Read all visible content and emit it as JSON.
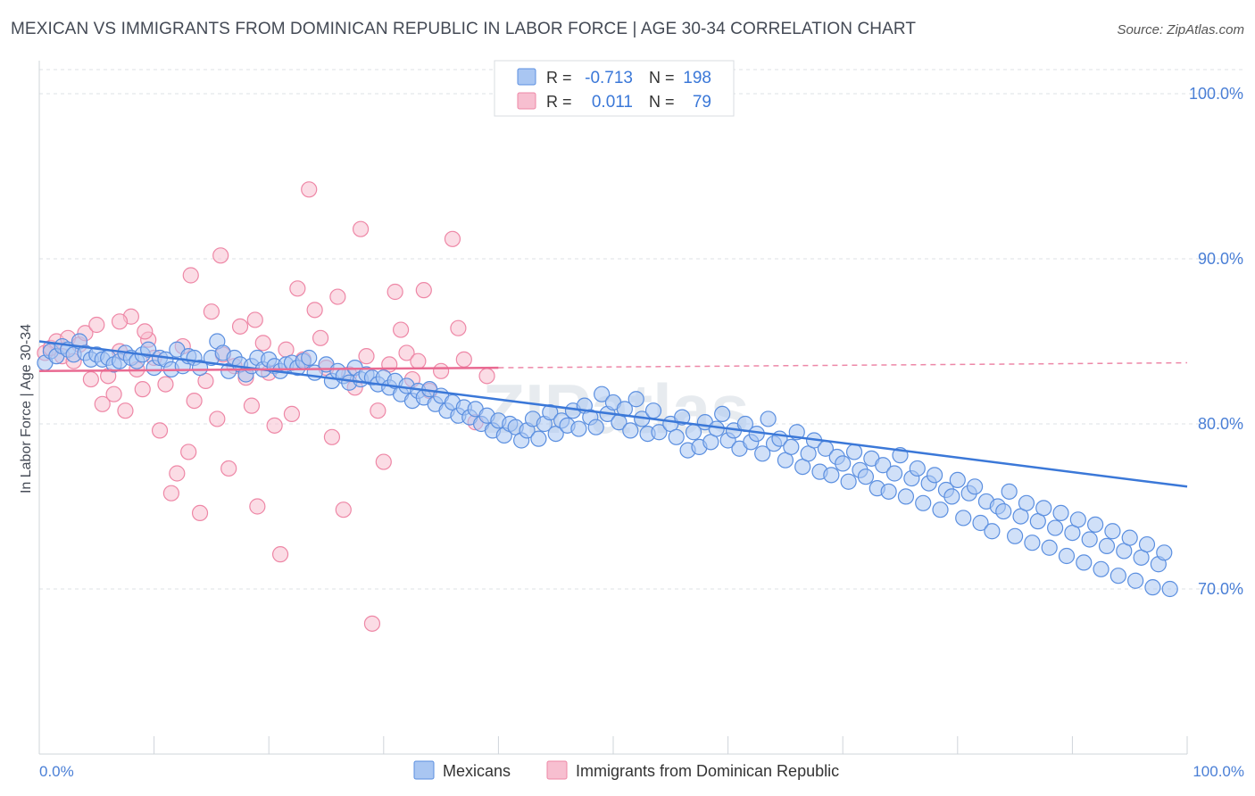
{
  "header": {
    "title": "MEXICAN VS IMMIGRANTS FROM DOMINICAN REPUBLIC IN LABOR FORCE | AGE 30-34 CORRELATION CHART",
    "source": "Source: ZipAtlas.com"
  },
  "watermark": "ZIPatlas",
  "colors": {
    "blue": "#5b8fe0",
    "blue_fill": "#a9c6f2",
    "blue_line": "#3b78d8",
    "pink": "#ee87a6",
    "pink_fill": "#f7bfd0",
    "pink_line": "#e96a92",
    "tick_label": "#4a7fd6",
    "grid": "#dde1e6"
  },
  "legend_top": {
    "rows": [
      {
        "r_label": "R =",
        "r_value": "-0.713",
        "n_label": "N =",
        "n_value": "198"
      },
      {
        "r_label": "R =",
        "r_value": "0.011",
        "n_label": "N =",
        "n_value": "79"
      }
    ]
  },
  "chart_data": {
    "type": "scatter",
    "title": "MEXICAN VS IMMIGRANTS FROM DOMINICAN REPUBLIC IN LABOR FORCE | AGE 30-34 CORRELATION CHART",
    "xlabel": "",
    "ylabel": "In Labor Force | Age 30-34",
    "xlim": [
      0,
      100
    ],
    "ylim": [
      60,
      102
    ],
    "x_tick_labels": [
      "0.0%",
      "100.0%"
    ],
    "y_ticks": [
      70,
      80,
      90,
      100
    ],
    "y_tick_labels": [
      "70.0%",
      "80.0%",
      "90.0%",
      "100.0%"
    ],
    "grid": true,
    "legend_position": "bottom",
    "series": [
      {
        "name": "Mexicans",
        "color": "#5b8fe0",
        "trend": {
          "x0": 0,
          "y0": 85.0,
          "x1": 100,
          "y1": 76.2
        },
        "points": [
          [
            0.5,
            83.7
          ],
          [
            1.0,
            84.4
          ],
          [
            1.5,
            84.1
          ],
          [
            2.0,
            84.7
          ],
          [
            2.5,
            84.5
          ],
          [
            3.0,
            84.2
          ],
          [
            3.5,
            85.0
          ],
          [
            4.0,
            84.3
          ],
          [
            4.5,
            83.9
          ],
          [
            5.0,
            84.2
          ],
          [
            5.5,
            83.9
          ],
          [
            6.0,
            84.0
          ],
          [
            6.5,
            83.6
          ],
          [
            7.0,
            83.8
          ],
          [
            7.5,
            84.3
          ],
          [
            8.0,
            84.0
          ],
          [
            8.5,
            83.8
          ],
          [
            9.0,
            84.2
          ],
          [
            9.5,
            84.5
          ],
          [
            10.0,
            83.4
          ],
          [
            10.5,
            84.0
          ],
          [
            11.0,
            83.9
          ],
          [
            11.5,
            83.3
          ],
          [
            12.0,
            84.5
          ],
          [
            12.5,
            83.5
          ],
          [
            13.0,
            84.1
          ],
          [
            13.5,
            84.0
          ],
          [
            14.0,
            83.4
          ],
          [
            15.0,
            84.0
          ],
          [
            15.5,
            85.0
          ],
          [
            16.0,
            84.3
          ],
          [
            16.5,
            83.2
          ],
          [
            17.0,
            84.0
          ],
          [
            17.5,
            83.6
          ],
          [
            18.0,
            83.0
          ],
          [
            18.5,
            83.5
          ],
          [
            19.0,
            84.0
          ],
          [
            19.5,
            83.3
          ],
          [
            20.0,
            83.9
          ],
          [
            20.5,
            83.5
          ],
          [
            21.0,
            83.2
          ],
          [
            21.5,
            83.6
          ],
          [
            22.0,
            83.7
          ],
          [
            22.5,
            83.4
          ],
          [
            23.0,
            83.8
          ],
          [
            23.5,
            84.0
          ],
          [
            24.0,
            83.1
          ],
          [
            25.0,
            83.6
          ],
          [
            25.5,
            82.6
          ],
          [
            26.0,
            83.2
          ],
          [
            26.5,
            82.9
          ],
          [
            27.0,
            82.5
          ],
          [
            27.5,
            83.4
          ],
          [
            28.0,
            82.7
          ],
          [
            28.5,
            83.0
          ],
          [
            29.0,
            82.8
          ],
          [
            29.5,
            82.4
          ],
          [
            30.0,
            82.8
          ],
          [
            30.5,
            82.2
          ],
          [
            31.0,
            82.6
          ],
          [
            31.5,
            81.8
          ],
          [
            32.0,
            82.3
          ],
          [
            32.5,
            81.4
          ],
          [
            33.0,
            82.0
          ],
          [
            33.5,
            81.6
          ],
          [
            34.0,
            82.1
          ],
          [
            34.5,
            81.2
          ],
          [
            35.0,
            81.7
          ],
          [
            35.5,
            80.8
          ],
          [
            36.0,
            81.3
          ],
          [
            36.5,
            80.5
          ],
          [
            37.0,
            81.0
          ],
          [
            37.5,
            80.4
          ],
          [
            38.0,
            80.9
          ],
          [
            38.5,
            80.0
          ],
          [
            39.0,
            80.5
          ],
          [
            39.5,
            79.6
          ],
          [
            40.0,
            80.2
          ],
          [
            40.5,
            79.3
          ],
          [
            41.0,
            80.0
          ],
          [
            41.5,
            79.8
          ],
          [
            42.0,
            79.0
          ],
          [
            42.5,
            79.6
          ],
          [
            43.0,
            80.3
          ],
          [
            43.5,
            79.1
          ],
          [
            44.0,
            80.0
          ],
          [
            44.5,
            80.7
          ],
          [
            45.0,
            79.4
          ],
          [
            45.5,
            80.2
          ],
          [
            46.0,
            79.9
          ],
          [
            46.5,
            80.8
          ],
          [
            47.0,
            79.7
          ],
          [
            47.5,
            81.1
          ],
          [
            48.0,
            80.4
          ],
          [
            48.5,
            79.8
          ],
          [
            49.0,
            81.8
          ],
          [
            49.5,
            80.6
          ],
          [
            50.0,
            81.3
          ],
          [
            50.5,
            80.1
          ],
          [
            51.0,
            80.9
          ],
          [
            51.5,
            79.6
          ],
          [
            52.0,
            81.5
          ],
          [
            52.5,
            80.3
          ],
          [
            53.0,
            79.4
          ],
          [
            53.5,
            80.8
          ],
          [
            54.0,
            79.5
          ],
          [
            55.0,
            80.0
          ],
          [
            55.5,
            79.2
          ],
          [
            56.0,
            80.4
          ],
          [
            56.5,
            78.4
          ],
          [
            57.0,
            79.5
          ],
          [
            57.5,
            78.6
          ],
          [
            58.0,
            80.1
          ],
          [
            58.5,
            78.9
          ],
          [
            59.0,
            79.7
          ],
          [
            59.5,
            80.6
          ],
          [
            60.0,
            79.0
          ],
          [
            60.5,
            79.6
          ],
          [
            61.0,
            78.5
          ],
          [
            61.5,
            80.0
          ],
          [
            62.0,
            78.9
          ],
          [
            62.5,
            79.4
          ],
          [
            63.0,
            78.2
          ],
          [
            63.5,
            80.3
          ],
          [
            64.0,
            78.8
          ],
          [
            64.5,
            79.1
          ],
          [
            65.0,
            77.8
          ],
          [
            65.5,
            78.6
          ],
          [
            66.0,
            79.5
          ],
          [
            66.5,
            77.4
          ],
          [
            67.0,
            78.2
          ],
          [
            67.5,
            79.0
          ],
          [
            68.0,
            77.1
          ],
          [
            68.5,
            78.5
          ],
          [
            69.0,
            76.9
          ],
          [
            69.5,
            78.0
          ],
          [
            70.0,
            77.6
          ],
          [
            70.5,
            76.5
          ],
          [
            71.0,
            78.3
          ],
          [
            71.5,
            77.2
          ],
          [
            72.0,
            76.8
          ],
          [
            72.5,
            77.9
          ],
          [
            73.0,
            76.1
          ],
          [
            73.5,
            77.5
          ],
          [
            74.0,
            75.9
          ],
          [
            74.5,
            77.0
          ],
          [
            75.0,
            78.1
          ],
          [
            75.5,
            75.6
          ],
          [
            76.0,
            76.7
          ],
          [
            76.5,
            77.3
          ],
          [
            77.0,
            75.2
          ],
          [
            77.5,
            76.4
          ],
          [
            78.0,
            76.9
          ],
          [
            78.5,
            74.8
          ],
          [
            79.0,
            76.0
          ],
          [
            79.5,
            75.6
          ],
          [
            80.0,
            76.6
          ],
          [
            80.5,
            74.3
          ],
          [
            81.0,
            75.8
          ],
          [
            81.5,
            76.2
          ],
          [
            82.0,
            74.0
          ],
          [
            82.5,
            75.3
          ],
          [
            83.0,
            73.5
          ],
          [
            83.5,
            75.0
          ],
          [
            84.0,
            74.7
          ],
          [
            84.5,
            75.9
          ],
          [
            85.0,
            73.2
          ],
          [
            85.5,
            74.4
          ],
          [
            86.0,
            75.2
          ],
          [
            86.5,
            72.8
          ],
          [
            87.0,
            74.1
          ],
          [
            87.5,
            74.9
          ],
          [
            88.0,
            72.5
          ],
          [
            88.5,
            73.7
          ],
          [
            89.0,
            74.6
          ],
          [
            89.5,
            72.0
          ],
          [
            90.0,
            73.4
          ],
          [
            90.5,
            74.2
          ],
          [
            91.0,
            71.6
          ],
          [
            91.5,
            73.0
          ],
          [
            92.0,
            73.9
          ],
          [
            92.5,
            71.2
          ],
          [
            93.0,
            72.6
          ],
          [
            93.5,
            73.5
          ],
          [
            94.0,
            70.8
          ],
          [
            94.5,
            72.3
          ],
          [
            95.0,
            73.1
          ],
          [
            95.5,
            70.5
          ],
          [
            96.0,
            71.9
          ],
          [
            96.5,
            72.7
          ],
          [
            97.0,
            70.1
          ],
          [
            97.5,
            71.5
          ],
          [
            98.0,
            72.2
          ],
          [
            98.5,
            70.0
          ]
        ]
      },
      {
        "name": "Immigrants from Dominican Republic",
        "color": "#ee87a6",
        "trend": {
          "x0": 0,
          "y0": 83.2,
          "x1": 40,
          "y1": 83.4,
          "dashed_to": 100
        },
        "points": [
          [
            0.5,
            84.3
          ],
          [
            1.0,
            84.6
          ],
          [
            1.5,
            85.0
          ],
          [
            2.0,
            84.1
          ],
          [
            2.5,
            85.2
          ],
          [
            3.0,
            83.8
          ],
          [
            3.5,
            84.8
          ],
          [
            4.0,
            85.5
          ],
          [
            4.5,
            82.7
          ],
          [
            5.0,
            86.0
          ],
          [
            5.5,
            81.2
          ],
          [
            6.0,
            82.9
          ],
          [
            6.5,
            81.8
          ],
          [
            7.0,
            84.4
          ],
          [
            7.5,
            80.8
          ],
          [
            8.0,
            86.5
          ],
          [
            8.5,
            83.3
          ],
          [
            9.0,
            82.1
          ],
          [
            9.5,
            85.1
          ],
          [
            10.0,
            84.0
          ],
          [
            10.5,
            79.6
          ],
          [
            11.0,
            82.4
          ],
          [
            11.5,
            75.8
          ],
          [
            12.0,
            77.0
          ],
          [
            12.5,
            84.7
          ],
          [
            13.0,
            78.3
          ],
          [
            13.5,
            81.4
          ],
          [
            14.0,
            74.6
          ],
          [
            14.5,
            82.6
          ],
          [
            15.0,
            86.8
          ],
          [
            15.5,
            80.3
          ],
          [
            16.0,
            84.2
          ],
          [
            16.5,
            77.3
          ],
          [
            17.0,
            83.5
          ],
          [
            17.5,
            85.9
          ],
          [
            18.0,
            82.8
          ],
          [
            18.5,
            81.1
          ],
          [
            19.0,
            75.0
          ],
          [
            19.5,
            84.9
          ],
          [
            20.0,
            83.1
          ],
          [
            20.5,
            79.9
          ],
          [
            21.0,
            72.1
          ],
          [
            21.5,
            84.5
          ],
          [
            22.0,
            80.6
          ],
          [
            22.5,
            88.2
          ],
          [
            23.0,
            83.9
          ],
          [
            23.5,
            94.2
          ],
          [
            24.0,
            86.9
          ],
          [
            24.5,
            85.2
          ],
          [
            25.0,
            83.4
          ],
          [
            25.5,
            79.2
          ],
          [
            26.0,
            87.7
          ],
          [
            26.5,
            74.8
          ],
          [
            27.0,
            83.0
          ],
          [
            27.5,
            82.2
          ],
          [
            28.0,
            91.8
          ],
          [
            28.5,
            84.1
          ],
          [
            29.0,
            67.9
          ],
          [
            29.5,
            80.8
          ],
          [
            30.0,
            77.7
          ],
          [
            30.5,
            83.6
          ],
          [
            31.0,
            88.0
          ],
          [
            31.5,
            85.7
          ],
          [
            32.0,
            84.3
          ],
          [
            32.5,
            82.7
          ],
          [
            33.0,
            83.8
          ],
          [
            33.5,
            88.1
          ],
          [
            34.0,
            82.0
          ],
          [
            35.0,
            83.2
          ],
          [
            36.0,
            91.2
          ],
          [
            36.5,
            85.8
          ],
          [
            37.0,
            83.9
          ],
          [
            38.0,
            80.1
          ],
          [
            39.0,
            82.9
          ],
          [
            7.0,
            86.2
          ],
          [
            9.2,
            85.6
          ],
          [
            13.2,
            89.0
          ],
          [
            15.8,
            90.2
          ],
          [
            18.8,
            86.3
          ]
        ]
      }
    ]
  },
  "axes": {
    "y_label": "In Labor Force | Age 30-34",
    "x_min_label": "0.0%",
    "x_max_label": "100.0%"
  },
  "legend_bottom": {
    "items": [
      {
        "label": "Mexicans"
      },
      {
        "label": "Immigrants from Dominican Republic"
      }
    ]
  }
}
